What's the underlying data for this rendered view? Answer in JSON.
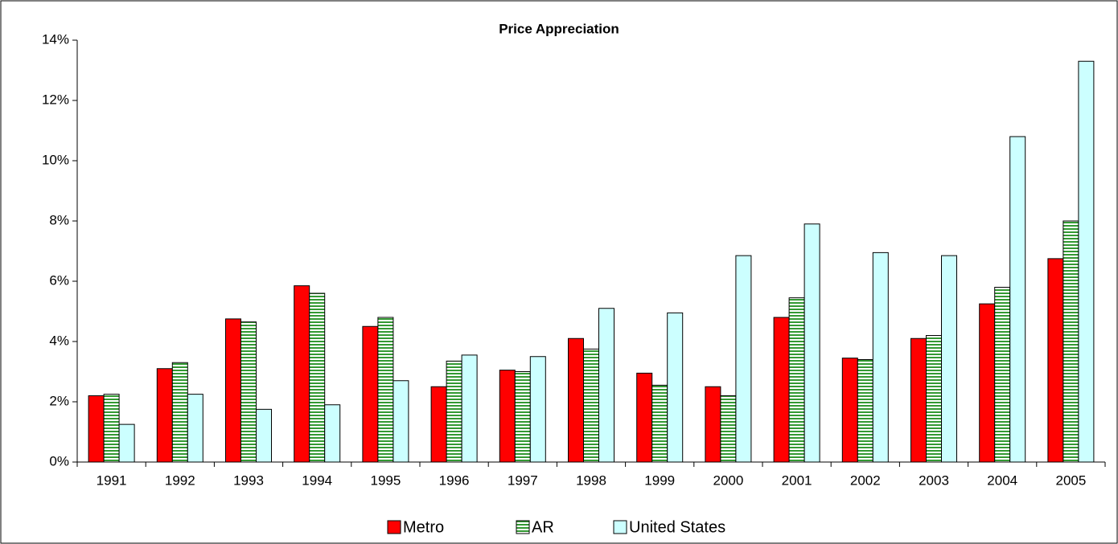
{
  "chart_data": {
    "type": "bar",
    "title": "Price Appreciation",
    "categories": [
      "1991",
      "1992",
      "1993",
      "1994",
      "1995",
      "1996",
      "1997",
      "1998",
      "1999",
      "2000",
      "2001",
      "2002",
      "2003",
      "2004",
      "2005"
    ],
    "series": [
      {
        "name": "Metro",
        "color": "#ff0000",
        "values": [
          2.2,
          3.1,
          4.75,
          5.85,
          4.5,
          2.5,
          3.05,
          4.1,
          2.95,
          2.5,
          4.8,
          3.45,
          4.1,
          5.25,
          6.75
        ]
      },
      {
        "name": "AR",
        "color": "#339933",
        "pattern": "horizontal-stripes",
        "values": [
          2.25,
          3.3,
          4.65,
          5.6,
          4.8,
          3.35,
          3.0,
          3.75,
          2.55,
          2.2,
          5.45,
          3.4,
          4.2,
          5.8,
          8.0
        ]
      },
      {
        "name": "United States",
        "color": "#ccffff",
        "values": [
          1.25,
          2.25,
          1.75,
          1.9,
          2.7,
          3.55,
          3.5,
          5.1,
          4.95,
          6.85,
          7.9,
          6.95,
          6.85,
          10.8,
          13.3
        ]
      }
    ],
    "ylim": [
      0,
      14
    ],
    "yticks": [
      {
        "value": 0,
        "label": "0%"
      },
      {
        "value": 2,
        "label": "2%"
      },
      {
        "value": 4,
        "label": "4%"
      },
      {
        "value": 6,
        "label": "6%"
      },
      {
        "value": 8,
        "label": "8%"
      },
      {
        "value": 10,
        "label": "10%"
      },
      {
        "value": 12,
        "label": "12%"
      },
      {
        "value": 14,
        "label": "14%"
      }
    ],
    "grid": false,
    "legend": "bottom"
  }
}
